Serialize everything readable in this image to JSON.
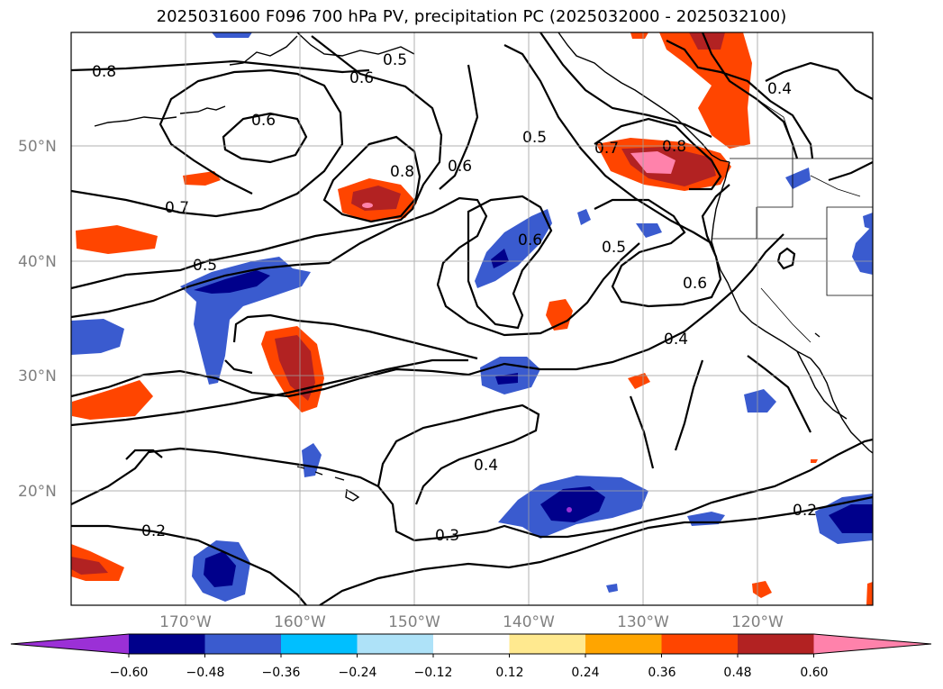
{
  "title": "2025031600 F096 700 hPa PV, precipitation PC (2025032000 - 2025032100)",
  "lat_labels": [
    "50°N",
    "40°N",
    "30°N",
    "20°N"
  ],
  "lon_labels": [
    "170°W",
    "160°W",
    "150°W",
    "140°W",
    "130°W",
    "120°W"
  ],
  "contour_labels": [
    "0.8",
    "0.6",
    "0.5",
    "0.6",
    "0.8",
    "0.6",
    "0.5",
    "0.7",
    "0.8",
    "0.4",
    "0.7",
    "0.6",
    "0.5",
    "0.6",
    "0.5",
    "0.4",
    "0.4",
    "0.3",
    "0.2",
    "0.2"
  ],
  "colorbar": {
    "tick_labels": [
      "−0.60",
      "−0.48",
      "−0.36",
      "−0.24",
      "−0.12",
      "0.12",
      "0.24",
      "0.36",
      "0.48",
      "0.60"
    ],
    "colors": [
      "#9b30d6",
      "#00008b",
      "#3a5bcf",
      "#00bfff",
      "#aee2f8",
      "#ffffff",
      "#ffe98f",
      "#ffa500",
      "#ff4500",
      "#b22222",
      "#ff82ab"
    ]
  }
}
